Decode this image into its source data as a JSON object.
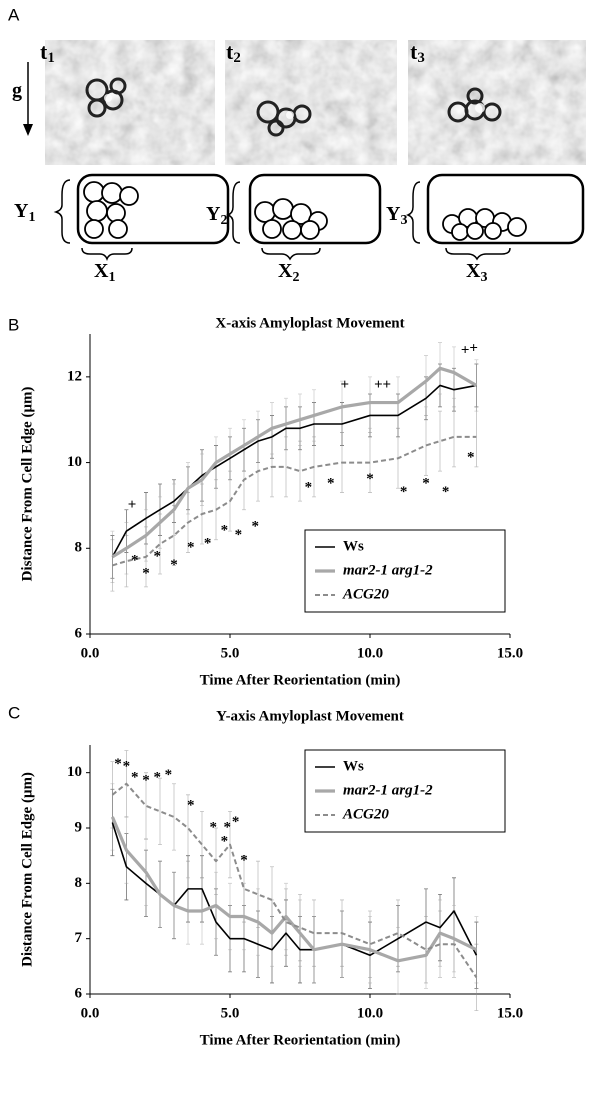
{
  "panel_a": {
    "panel": "A",
    "gravity": "g",
    "frames": [
      {
        "t": "t",
        "t_sub": "1",
        "y": "Y",
        "y_sub": "1",
        "x": "X",
        "x_sub": "1"
      },
      {
        "t": "t",
        "t_sub": "2",
        "y": "Y",
        "y_sub": "2",
        "x": "X",
        "x_sub": "2"
      },
      {
        "t": "t",
        "t_sub": "3",
        "y": "Y",
        "y_sub": "3",
        "x": "X",
        "x_sub": "3"
      }
    ]
  },
  "chart_data": [
    {
      "type": "line",
      "panel": "B",
      "title": "X-axis Amyloplast Movement",
      "x_label": "Time After Reorientation (min)",
      "y_label": "Distance From Cell Edge (μm)",
      "x": [
        0.8,
        1.3,
        2,
        2.5,
        3,
        3.5,
        4,
        4.5,
        5,
        5.5,
        6,
        6.5,
        7,
        7.5,
        8,
        9,
        10,
        11,
        12,
        12.5,
        13,
        13.8
      ],
      "series": [
        {
          "name": "Ws",
          "color": "#000000",
          "width": 1.6,
          "dash": false,
          "values": [
            7.8,
            8.4,
            8.7,
            8.9,
            9.1,
            9.4,
            9.7,
            9.9,
            10.1,
            10.3,
            10.5,
            10.6,
            10.8,
            10.8,
            10.9,
            10.9,
            11.1,
            11.1,
            11.5,
            11.8,
            11.7,
            11.8
          ],
          "errors": [
            0.5,
            0.5,
            0.6,
            0.6,
            0.5,
            0.5,
            0.6,
            0.5,
            0.5,
            0.5,
            0.5,
            0.5,
            0.5,
            0.5,
            0.5,
            0.5,
            0.5,
            0.5,
            0.5,
            0.5,
            0.5,
            0.5
          ]
        },
        {
          "name": "mar2-1 arg1-2",
          "color": "#a8a8a8",
          "width": 3.2,
          "dash": false,
          "values": [
            7.8,
            8.0,
            8.3,
            8.6,
            8.9,
            9.4,
            9.6,
            10.0,
            10.2,
            10.4,
            10.6,
            10.8,
            10.9,
            11.0,
            11.1,
            11.3,
            11.4,
            11.4,
            11.9,
            12.2,
            12.1,
            11.8
          ],
          "errors": [
            0.6,
            0.6,
            0.6,
            0.6,
            0.6,
            0.6,
            0.6,
            0.6,
            0.6,
            0.6,
            0.6,
            0.6,
            0.6,
            0.6,
            0.6,
            0.6,
            0.6,
            0.6,
            0.6,
            0.6,
            0.6,
            0.6
          ]
        },
        {
          "name": "ACG20",
          "color": "#8c8c8c",
          "width": 2,
          "dash": true,
          "values": [
            7.6,
            7.7,
            7.8,
            8.1,
            8.3,
            8.6,
            8.8,
            8.9,
            9.1,
            9.6,
            9.8,
            9.9,
            9.9,
            9.8,
            9.9,
            10.0,
            10.0,
            10.1,
            10.4,
            10.5,
            10.6,
            10.6
          ],
          "errors": [
            0.6,
            0.6,
            0.7,
            0.7,
            0.7,
            0.7,
            0.7,
            0.7,
            0.7,
            0.7,
            0.7,
            0.7,
            0.7,
            0.7,
            0.7,
            0.7,
            0.7,
            0.7,
            0.7,
            0.7,
            0.7,
            0.7
          ]
        }
      ],
      "markers": [
        {
          "x": 1.5,
          "y": 9.0,
          "symbol": "+"
        },
        {
          "x": 9.1,
          "y": 11.8,
          "symbol": "+"
        },
        {
          "x": 10.3,
          "y": 11.8,
          "symbol": "+"
        },
        {
          "x": 10.6,
          "y": 11.8,
          "symbol": "+"
        },
        {
          "x": 13.4,
          "y": 12.6,
          "symbol": "+"
        },
        {
          "x": 13.7,
          "y": 12.65,
          "symbol": "+"
        },
        {
          "x": 1.6,
          "y": 7.7,
          "symbol": "*"
        },
        {
          "x": 2.0,
          "y": 7.4,
          "symbol": "*"
        },
        {
          "x": 2.4,
          "y": 7.8,
          "symbol": "*"
        },
        {
          "x": 3.0,
          "y": 7.6,
          "symbol": "*"
        },
        {
          "x": 3.6,
          "y": 8.0,
          "symbol": "*"
        },
        {
          "x": 4.2,
          "y": 8.1,
          "symbol": "*"
        },
        {
          "x": 4.8,
          "y": 8.4,
          "symbol": "*"
        },
        {
          "x": 5.3,
          "y": 8.3,
          "symbol": "*"
        },
        {
          "x": 5.9,
          "y": 8.5,
          "symbol": "*"
        },
        {
          "x": 7.8,
          "y": 9.4,
          "symbol": "*"
        },
        {
          "x": 8.6,
          "y": 9.5,
          "symbol": "*"
        },
        {
          "x": 10.0,
          "y": 9.6,
          "symbol": "*"
        },
        {
          "x": 11.2,
          "y": 9.3,
          "symbol": "*"
        },
        {
          "x": 12.0,
          "y": 9.5,
          "symbol": "*"
        },
        {
          "x": 12.7,
          "y": 9.3,
          "symbol": "*"
        },
        {
          "x": 13.6,
          "y": 10.1,
          "symbol": "*"
        }
      ],
      "xlim": [
        0,
        15
      ],
      "ylim": [
        6,
        13
      ],
      "xticks": [
        {
          "value": 0,
          "label": "0.0"
        },
        {
          "value": 5,
          "label": "5.0"
        },
        {
          "value": 10,
          "label": "10.0"
        },
        {
          "value": 15,
          "label": "15.0"
        }
      ],
      "yticks": [
        6,
        8,
        10,
        12
      ],
      "legend": "lower right"
    },
    {
      "type": "line",
      "panel": "C",
      "title": "Y-axis Amyloplast Movement",
      "x_label": "Time After Reorientation (min)",
      "y_label": "Distance From Cell Edge (μm)",
      "x": [
        0.8,
        1.3,
        2,
        2.5,
        3,
        3.5,
        4,
        4.5,
        5,
        5.5,
        6,
        6.5,
        7,
        7.5,
        8,
        9,
        10,
        11,
        12,
        12.5,
        13,
        13.8
      ],
      "series": [
        {
          "name": "Ws",
          "color": "#000000",
          "width": 1.6,
          "dash": false,
          "values": [
            9.1,
            8.3,
            8.0,
            7.8,
            7.6,
            7.9,
            7.9,
            7.3,
            7.0,
            7.0,
            6.9,
            6.8,
            7.1,
            6.8,
            6.8,
            6.9,
            6.7,
            7.0,
            7.3,
            7.2,
            7.5,
            6.7
          ],
          "errors": [
            0.6,
            0.6,
            0.6,
            0.6,
            0.6,
            0.6,
            0.6,
            0.6,
            0.6,
            0.6,
            0.6,
            0.6,
            0.6,
            0.6,
            0.6,
            0.6,
            0.6,
            0.6,
            0.6,
            0.6,
            0.6,
            0.6
          ]
        },
        {
          "name": "mar2-1 arg1-2",
          "color": "#a8a8a8",
          "width": 3.2,
          "dash": false,
          "values": [
            9.2,
            8.6,
            8.2,
            7.8,
            7.6,
            7.5,
            7.5,
            7.6,
            7.4,
            7.4,
            7.3,
            7.1,
            7.4,
            7.1,
            6.8,
            6.9,
            6.8,
            6.6,
            6.7,
            7.1,
            7.0,
            6.8
          ],
          "errors": [
            0.6,
            0.6,
            0.6,
            0.6,
            0.6,
            0.6,
            0.6,
            0.6,
            0.6,
            0.6,
            0.6,
            0.6,
            0.6,
            0.6,
            0.6,
            0.6,
            0.6,
            0.6,
            0.6,
            0.6,
            0.6,
            0.6
          ]
        },
        {
          "name": "ACG20",
          "color": "#8c8c8c",
          "width": 2,
          "dash": true,
          "values": [
            9.6,
            9.8,
            9.4,
            9.3,
            9.2,
            9.0,
            8.7,
            8.4,
            8.7,
            7.9,
            7.8,
            7.7,
            7.3,
            7.2,
            7.1,
            7.1,
            6.9,
            7.1,
            6.8,
            6.9,
            6.9,
            6.3
          ],
          "errors": [
            0.6,
            0.6,
            0.6,
            0.6,
            0.6,
            0.6,
            0.6,
            0.6,
            0.6,
            0.6,
            0.6,
            0.6,
            0.6,
            0.6,
            0.6,
            0.6,
            0.6,
            0.6,
            0.6,
            0.6,
            0.6,
            0.6
          ]
        }
      ],
      "markers": [
        {
          "x": 1.0,
          "y": 10.15,
          "symbol": "*"
        },
        {
          "x": 1.3,
          "y": 10.1,
          "symbol": "*"
        },
        {
          "x": 1.6,
          "y": 9.9,
          "symbol": "*"
        },
        {
          "x": 2.0,
          "y": 9.85,
          "symbol": "*"
        },
        {
          "x": 2.4,
          "y": 9.9,
          "symbol": "*"
        },
        {
          "x": 2.8,
          "y": 9.95,
          "symbol": "*"
        },
        {
          "x": 3.6,
          "y": 9.4,
          "symbol": "*"
        },
        {
          "x": 4.4,
          "y": 9.0,
          "symbol": "*"
        },
        {
          "x": 4.9,
          "y": 9.0,
          "symbol": "*"
        },
        {
          "x": 5.2,
          "y": 9.1,
          "symbol": "*"
        },
        {
          "x": 4.8,
          "y": 8.75,
          "symbol": "*"
        },
        {
          "x": 5.5,
          "y": 8.4,
          "symbol": "*"
        }
      ],
      "xlim": [
        0,
        15
      ],
      "ylim": [
        6,
        10.5
      ],
      "xticks": [
        {
          "value": 0,
          "label": "0.0"
        },
        {
          "value": 5,
          "label": "5.0"
        },
        {
          "value": 10,
          "label": "10.0"
        },
        {
          "value": 15,
          "label": "15.0"
        }
      ],
      "yticks": [
        6,
        7,
        8,
        9,
        10
      ],
      "legend": "upper right"
    }
  ]
}
